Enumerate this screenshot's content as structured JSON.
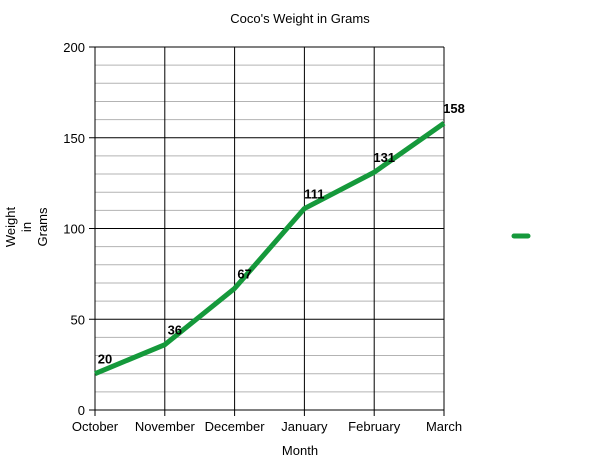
{
  "chart_data": {
    "type": "line",
    "title": "Coco's Weight in Grams",
    "xlabel": "Month",
    "ylabel": [
      "Weight",
      "in",
      "Grams"
    ],
    "categories": [
      "October",
      "November",
      "December",
      "January",
      "February",
      "March"
    ],
    "series": [
      {
        "values": [
          20,
          36,
          67,
          111,
          131,
          158
        ],
        "color": "#15993b"
      }
    ],
    "ylim": [
      0,
      200
    ],
    "yticks": [
      0,
      50,
      100,
      150,
      200
    ],
    "minor_step": 10,
    "grid": true,
    "legend": "right",
    "data_labels": true
  }
}
